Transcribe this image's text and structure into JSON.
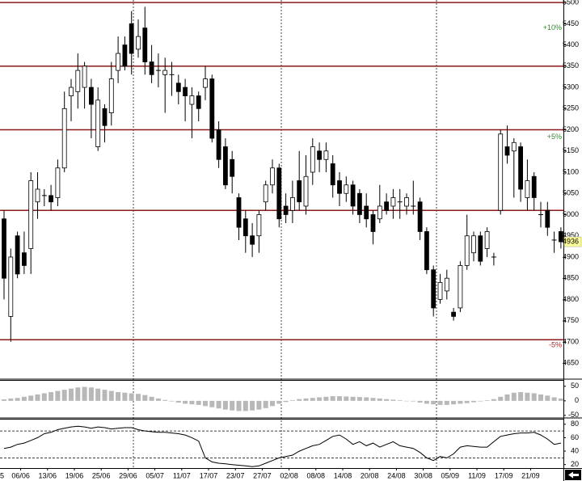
{
  "chart_data": [
    {
      "type": "candlestick",
      "categories": [
        "5",
        null,
        null,
        null,
        "06/06",
        null,
        null,
        null,
        "13/06",
        null,
        null,
        null,
        "19/06",
        null,
        null,
        null,
        "25/06",
        null,
        null,
        null,
        "29/06",
        null,
        null,
        null,
        "05/07",
        null,
        null,
        null,
        "11/07",
        null,
        null,
        null,
        "17/07",
        null,
        null,
        null,
        "23/07",
        null,
        null,
        null,
        "27/07",
        null,
        null,
        null,
        "02/08",
        null,
        null,
        null,
        "08/08",
        null,
        null,
        null,
        "14/08",
        null,
        null,
        null,
        "20/08",
        null,
        null,
        null,
        "24/08",
        null,
        null,
        null,
        "30/08",
        null,
        null,
        null,
        "05/09",
        null,
        null,
        null,
        "11/09",
        null,
        null,
        null,
        "17/09",
        null,
        null,
        null,
        "21/09",
        null,
        null,
        null,
        null,
        null
      ],
      "open": [
        null,
        null,
        4990,
        4760,
        4950,
        4910,
        4920,
        5030,
        5045,
        5045,
        5040,
        5110,
        5280,
        5290,
        5300,
        5300,
        5160,
        5250,
        5240,
        5340,
        5400,
        5450,
        5390,
        5440,
        5360,
        5340,
        5330,
        5330,
        5310,
        5300,
        5260,
        5280,
        5300,
        5320,
        5200,
        5160,
        5130,
        5040,
        4990,
        4950,
        4950,
        5030,
        5070,
        5110,
        5020,
        5010,
        5080,
        5020,
        5100,
        5150,
        5130,
        5120,
        5080,
        5050,
        5070,
        5050,
        5020,
        5000,
        4990,
        5030,
        5020,
        5030,
        5020,
        5020,
        5030,
        4960,
        4870,
        4800,
        4820,
        4770,
        4780,
        4880,
        4910,
        4950,
        4920,
        4900,
        5010,
        5160,
        5150,
        5160,
        5040,
        5090,
        5000,
        5010,
        4940,
        4960
      ],
      "high": [
        null,
        null,
        5010,
        4920,
        4960,
        4960,
        5100,
        5100,
        5060,
        5070,
        5130,
        5290,
        5320,
        5380,
        5360,
        5320,
        5300,
        5260,
        5360,
        5420,
        5420,
        5480,
        5460,
        5490,
        5400,
        5380,
        5370,
        5360,
        5330,
        5320,
        5300,
        5290,
        5350,
        5330,
        5220,
        5180,
        5150,
        5050,
        5010,
        4980,
        5010,
        5080,
        5130,
        5120,
        5050,
        5080,
        5150,
        5140,
        5180,
        5170,
        5170,
        5140,
        5100,
        5090,
        5080,
        5060,
        5050,
        5010,
        5070,
        5050,
        5060,
        5060,
        5050,
        5080,
        5040,
        4970,
        4880,
        4860,
        4870,
        4780,
        4890,
        5000,
        4960,
        4960,
        4970,
        4910,
        5200,
        5210,
        5180,
        5170,
        5130,
        5100,
        5030,
        5030,
        4960,
        4970
      ],
      "low": [
        null,
        null,
        4800,
        4700,
        4850,
        4860,
        4860,
        4990,
        5020,
        5010,
        5020,
        5100,
        5220,
        5250,
        5250,
        5180,
        5150,
        5170,
        5210,
        5310,
        5340,
        5330,
        5370,
        5330,
        5310,
        5300,
        5240,
        5280,
        5260,
        5220,
        5180,
        5220,
        5270,
        5170,
        5110,
        5060,
        5050,
        4940,
        4910,
        4900,
        4910,
        5010,
        5050,
        4970,
        4980,
        4980,
        5010,
        5000,
        5070,
        5100,
        5100,
        5040,
        5020,
        5030,
        5000,
        4980,
        4970,
        4930,
        4980,
        5000,
        4990,
        4990,
        5000,
        5000,
        4940,
        4860,
        4760,
        4790,
        4800,
        4750,
        4770,
        4870,
        4890,
        4880,
        4900,
        4880,
        5000,
        5120,
        5040,
        5030,
        5010,
        5010,
        4970,
        4950,
        4910,
        4920
      ],
      "close": [
        null,
        null,
        4850,
        4900,
        4860,
        4880,
        5080,
        5060,
        5045,
        5030,
        5110,
        5250,
        5300,
        5340,
        5350,
        5260,
        5270,
        5210,
        5320,
        5380,
        5350,
        5380,
        5420,
        5360,
        5330,
        5340,
        5340,
        5330,
        5290,
        5280,
        5280,
        5250,
        5320,
        5180,
        5130,
        5070,
        5090,
        4970,
        4950,
        4930,
        5000,
        5070,
        5110,
        4990,
        5000,
        5040,
        5030,
        5090,
        5160,
        5130,
        5150,
        5070,
        5050,
        5070,
        5020,
        5000,
        4990,
        4960,
        5020,
        5010,
        5040,
        5030,
        5040,
        5020,
        4960,
        4870,
        4780,
        4840,
        4850,
        4760,
        4880,
        4950,
        4950,
        4890,
        4960,
        4900,
        5190,
        5140,
        5170,
        5060,
        5080,
        5040,
        5000,
        4970,
        4940,
        4936
      ],
      "up_color": "#ffffff",
      "down_color": "#000000",
      "ylim": [
        4614,
        5506
      ],
      "yticks": [
        4650,
        4700,
        4750,
        4800,
        4850,
        4900,
        4950,
        5000,
        5050,
        5100,
        5150,
        5200,
        5250,
        5300,
        5350,
        5400,
        5450,
        5500
      ],
      "hlines": [
        5500,
        5350,
        5200,
        5010,
        4705
      ],
      "hline_color": "#8b1a1a",
      "annotations": [
        {
          "text": "+10%",
          "y": 5440,
          "color": "#2e8b2e"
        },
        {
          "text": "+5%",
          "y": 5183,
          "color": "#2e8b2e"
        },
        {
          "text": "-5%",
          "y": 4692,
          "color": "#b22222"
        }
      ],
      "last_price": 4936
    },
    {
      "type": "bar",
      "color": "#b8b8b8",
      "values": [
        null,
        null,
        5,
        8,
        10,
        14,
        18,
        22,
        26,
        30,
        34,
        38,
        42,
        46,
        48,
        46,
        42,
        38,
        34,
        30,
        28,
        26,
        24,
        20,
        14,
        8,
        3,
        -2,
        -6,
        -10,
        -12,
        -14,
        -18,
        -22,
        -26,
        -30,
        -33,
        -35,
        -35,
        -33,
        -30,
        -25,
        -18,
        -10,
        -4,
        2,
        6,
        8,
        10,
        12,
        14,
        16,
        16,
        15,
        14,
        13,
        12,
        10,
        8,
        6,
        4,
        2,
        0,
        -2,
        -6,
        -10,
        -12,
        -14,
        -14,
        -12,
        -10,
        -8,
        -5,
        -2,
        2,
        6,
        14,
        22,
        28,
        30,
        28,
        26,
        22,
        18,
        12,
        8
      ],
      "ylim": [
        -56,
        69
      ],
      "yticks": [
        50,
        0,
        -50
      ]
    },
    {
      "type": "line",
      "color": "#000000",
      "values": [
        null,
        null,
        44,
        46,
        50,
        52,
        56,
        60,
        66,
        68,
        72,
        74,
        76,
        77,
        76,
        74,
        76,
        75,
        73,
        74,
        75,
        75,
        72,
        70,
        69,
        68,
        68,
        67,
        66,
        64,
        60,
        55,
        30,
        24,
        22,
        21,
        20,
        19,
        18,
        17,
        18,
        22,
        26,
        30,
        32,
        34,
        40,
        44,
        48,
        50,
        56,
        62,
        64,
        58,
        50,
        54,
        48,
        52,
        46,
        50,
        54,
        48,
        46,
        44,
        38,
        30,
        26,
        32,
        30,
        36,
        46,
        48,
        47,
        46,
        46,
        54,
        62,
        64,
        66,
        67,
        67,
        68,
        64,
        58,
        50,
        52
      ],
      "ylim": [
        16,
        87
      ],
      "yticks": [
        80,
        60,
        40,
        20
      ],
      "ref_lines": [
        70,
        30
      ]
    }
  ]
}
